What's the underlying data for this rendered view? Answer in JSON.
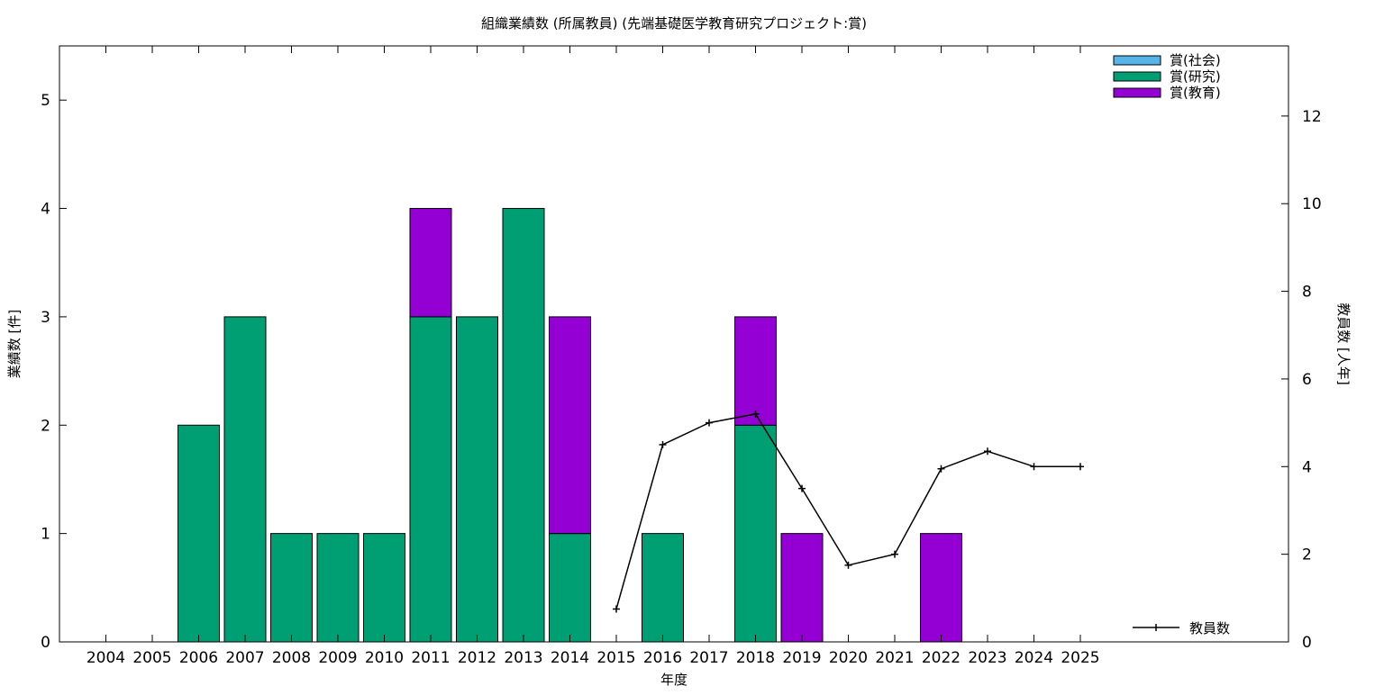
{
  "chart_data": {
    "type": "bar",
    "stacked": true,
    "title": "組織業績数 (所属教員) (先端基礎医学教育研究プロジェクト:賞)",
    "xlabel": "年度",
    "ylabel": "業績数 [件]",
    "y2label": "教員数 [人年]",
    "categories": [
      "2004",
      "2005",
      "2006",
      "2007",
      "2008",
      "2009",
      "2010",
      "2011",
      "2012",
      "2013",
      "2014",
      "2015",
      "2016",
      "2017",
      "2018",
      "2019",
      "2020",
      "2021",
      "2022",
      "2023",
      "2024",
      "2025"
    ],
    "ylim": [
      0,
      5.5
    ],
    "yticks": [
      0,
      1,
      2,
      3,
      4,
      5
    ],
    "y2lim": [
      0,
      13.6
    ],
    "y2ticks": [
      0,
      2,
      4,
      6,
      8,
      10,
      12
    ],
    "grid": false,
    "legend_position": "top-right",
    "series": [
      {
        "name": "賞(社会)",
        "color": "#56b4e9",
        "values": [
          0,
          0,
          0,
          0,
          0,
          0,
          0,
          0,
          0,
          0,
          0,
          0,
          0,
          0,
          0,
          0,
          0,
          0,
          0,
          0,
          0,
          0
        ]
      },
      {
        "name": "賞(研究)",
        "color": "#009e73",
        "values": [
          0,
          0,
          2,
          3,
          1,
          1,
          1,
          3,
          3,
          4,
          1,
          0,
          1,
          0,
          2,
          0,
          0,
          0,
          0,
          0,
          0,
          0
        ]
      },
      {
        "name": "賞(教育)",
        "color": "#9400d3",
        "values": [
          0,
          0,
          0,
          0,
          0,
          0,
          0,
          1,
          0,
          0,
          2,
          0,
          0,
          0,
          1,
          1,
          0,
          0,
          1,
          0,
          0,
          0
        ]
      }
    ],
    "line_series": {
      "name": "教員数",
      "axis": "right",
      "legend_position": "bottom-right",
      "color": "#000000",
      "x": [
        "2015",
        "2016",
        "2017",
        "2018",
        "2019",
        "2020",
        "2021",
        "2022",
        "2023",
        "2024",
        "2025"
      ],
      "values": [
        0.75,
        4.5,
        5.0,
        5.2,
        3.5,
        1.75,
        2.0,
        3.95,
        4.35,
        4.0,
        4.0
      ]
    }
  }
}
